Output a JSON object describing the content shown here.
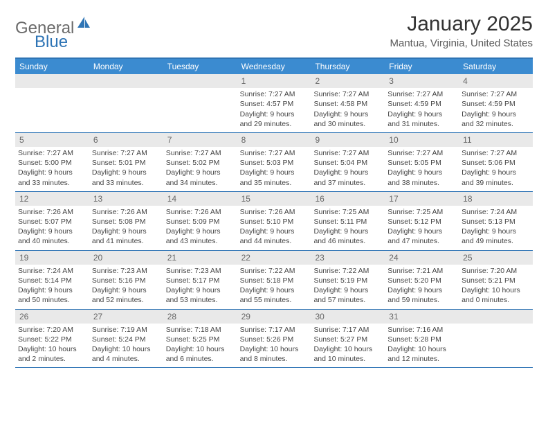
{
  "logo": {
    "text1": "General",
    "text2": "Blue"
  },
  "title": "January 2025",
  "location": "Mantua, Virginia, United States",
  "colors": {
    "header_bg": "#3b8bd0",
    "border": "#2e74b5",
    "daynum_bg": "#e9e9e9",
    "text": "#444444",
    "logo_gray": "#6a6a6a",
    "logo_blue": "#2e74b5"
  },
  "dayheads": [
    "Sunday",
    "Monday",
    "Tuesday",
    "Wednesday",
    "Thursday",
    "Friday",
    "Saturday"
  ],
  "weeks": [
    [
      {
        "n": "",
        "sr": "",
        "ss": "",
        "dl": ""
      },
      {
        "n": "",
        "sr": "",
        "ss": "",
        "dl": ""
      },
      {
        "n": "",
        "sr": "",
        "ss": "",
        "dl": ""
      },
      {
        "n": "1",
        "sr": "7:27 AM",
        "ss": "4:57 PM",
        "dl": "9 hours and 29 minutes."
      },
      {
        "n": "2",
        "sr": "7:27 AM",
        "ss": "4:58 PM",
        "dl": "9 hours and 30 minutes."
      },
      {
        "n": "3",
        "sr": "7:27 AM",
        "ss": "4:59 PM",
        "dl": "9 hours and 31 minutes."
      },
      {
        "n": "4",
        "sr": "7:27 AM",
        "ss": "4:59 PM",
        "dl": "9 hours and 32 minutes."
      }
    ],
    [
      {
        "n": "5",
        "sr": "7:27 AM",
        "ss": "5:00 PM",
        "dl": "9 hours and 33 minutes."
      },
      {
        "n": "6",
        "sr": "7:27 AM",
        "ss": "5:01 PM",
        "dl": "9 hours and 33 minutes."
      },
      {
        "n": "7",
        "sr": "7:27 AM",
        "ss": "5:02 PM",
        "dl": "9 hours and 34 minutes."
      },
      {
        "n": "8",
        "sr": "7:27 AM",
        "ss": "5:03 PM",
        "dl": "9 hours and 35 minutes."
      },
      {
        "n": "9",
        "sr": "7:27 AM",
        "ss": "5:04 PM",
        "dl": "9 hours and 37 minutes."
      },
      {
        "n": "10",
        "sr": "7:27 AM",
        "ss": "5:05 PM",
        "dl": "9 hours and 38 minutes."
      },
      {
        "n": "11",
        "sr": "7:27 AM",
        "ss": "5:06 PM",
        "dl": "9 hours and 39 minutes."
      }
    ],
    [
      {
        "n": "12",
        "sr": "7:26 AM",
        "ss": "5:07 PM",
        "dl": "9 hours and 40 minutes."
      },
      {
        "n": "13",
        "sr": "7:26 AM",
        "ss": "5:08 PM",
        "dl": "9 hours and 41 minutes."
      },
      {
        "n": "14",
        "sr": "7:26 AM",
        "ss": "5:09 PM",
        "dl": "9 hours and 43 minutes."
      },
      {
        "n": "15",
        "sr": "7:26 AM",
        "ss": "5:10 PM",
        "dl": "9 hours and 44 minutes."
      },
      {
        "n": "16",
        "sr": "7:25 AM",
        "ss": "5:11 PM",
        "dl": "9 hours and 46 minutes."
      },
      {
        "n": "17",
        "sr": "7:25 AM",
        "ss": "5:12 PM",
        "dl": "9 hours and 47 minutes."
      },
      {
        "n": "18",
        "sr": "7:24 AM",
        "ss": "5:13 PM",
        "dl": "9 hours and 49 minutes."
      }
    ],
    [
      {
        "n": "19",
        "sr": "7:24 AM",
        "ss": "5:14 PM",
        "dl": "9 hours and 50 minutes."
      },
      {
        "n": "20",
        "sr": "7:23 AM",
        "ss": "5:16 PM",
        "dl": "9 hours and 52 minutes."
      },
      {
        "n": "21",
        "sr": "7:23 AM",
        "ss": "5:17 PM",
        "dl": "9 hours and 53 minutes."
      },
      {
        "n": "22",
        "sr": "7:22 AM",
        "ss": "5:18 PM",
        "dl": "9 hours and 55 minutes."
      },
      {
        "n": "23",
        "sr": "7:22 AM",
        "ss": "5:19 PM",
        "dl": "9 hours and 57 minutes."
      },
      {
        "n": "24",
        "sr": "7:21 AM",
        "ss": "5:20 PM",
        "dl": "9 hours and 59 minutes."
      },
      {
        "n": "25",
        "sr": "7:20 AM",
        "ss": "5:21 PM",
        "dl": "10 hours and 0 minutes."
      }
    ],
    [
      {
        "n": "26",
        "sr": "7:20 AM",
        "ss": "5:22 PM",
        "dl": "10 hours and 2 minutes."
      },
      {
        "n": "27",
        "sr": "7:19 AM",
        "ss": "5:24 PM",
        "dl": "10 hours and 4 minutes."
      },
      {
        "n": "28",
        "sr": "7:18 AM",
        "ss": "5:25 PM",
        "dl": "10 hours and 6 minutes."
      },
      {
        "n": "29",
        "sr": "7:17 AM",
        "ss": "5:26 PM",
        "dl": "10 hours and 8 minutes."
      },
      {
        "n": "30",
        "sr": "7:17 AM",
        "ss": "5:27 PM",
        "dl": "10 hours and 10 minutes."
      },
      {
        "n": "31",
        "sr": "7:16 AM",
        "ss": "5:28 PM",
        "dl": "10 hours and 12 minutes."
      },
      {
        "n": "",
        "sr": "",
        "ss": "",
        "dl": ""
      }
    ]
  ],
  "labels": {
    "sunrise": "Sunrise:",
    "sunset": "Sunset:",
    "daylight": "Daylight:"
  }
}
